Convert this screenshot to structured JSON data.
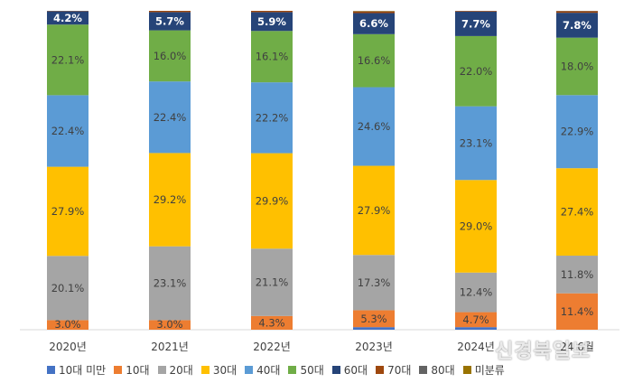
{
  "chart_data": {
    "type": "bar",
    "stacked": true,
    "percent_stacked": true,
    "categories": [
      "2020년",
      "2021년",
      "2022년",
      "2023년",
      "2024년",
      "24.6월"
    ],
    "series": [
      {
        "name": "10대 미만",
        "color": "#4472C4",
        "values": [
          0.0,
          0.0,
          0.0,
          0.8,
          0.8,
          0.0
        ],
        "labels": [
          "",
          "",
          "",
          "",
          "",
          ""
        ]
      },
      {
        "name": "10대",
        "color": "#ED7D31",
        "values": [
          3.0,
          3.0,
          4.3,
          5.3,
          4.7,
          11.4
        ],
        "labels": [
          "3.0%",
          "3.0%",
          "4.3%",
          "5.3%",
          "4.7%",
          "11.4%"
        ]
      },
      {
        "name": "20대",
        "color": "#A5A5A5",
        "values": [
          20.1,
          23.1,
          21.1,
          17.3,
          12.4,
          11.8
        ],
        "labels": [
          "20.1%",
          "23.1%",
          "21.1%",
          "17.3%",
          "12.4%",
          "11.8%"
        ]
      },
      {
        "name": "30대",
        "color": "#FFC000",
        "values": [
          27.9,
          29.2,
          29.9,
          27.9,
          29.0,
          27.4
        ],
        "labels": [
          "27.9%",
          "29.2%",
          "29.9%",
          "27.9%",
          "29.0%",
          "27.4%"
        ]
      },
      {
        "name": "40대",
        "color": "#5B9BD5",
        "values": [
          22.4,
          22.4,
          22.2,
          24.6,
          23.1,
          22.9
        ],
        "labels": [
          "22.4%",
          "22.4%",
          "22.2%",
          "24.6%",
          "23.1%",
          "22.9%"
        ]
      },
      {
        "name": "50대",
        "color": "#70AD47",
        "values": [
          22.1,
          16.0,
          16.1,
          16.6,
          22.0,
          18.0
        ],
        "labels": [
          "22.1%",
          "16.0%",
          "16.1%",
          "16.6%",
          "22.0%",
          "18.0%"
        ]
      },
      {
        "name": "60대",
        "color": "#264478",
        "values": [
          4.2,
          5.7,
          5.9,
          6.6,
          7.7,
          7.8
        ],
        "labels": [
          "4.2%",
          "5.7%",
          "5.9%",
          "6.6%",
          "7.7%",
          "7.8%"
        ]
      },
      {
        "name": "70대",
        "color": "#9E480E",
        "values": [
          0.1,
          0.4,
          0.4,
          0.5,
          0.2,
          0.5
        ],
        "labels": [
          "",
          "",
          "",
          "",
          "",
          ""
        ]
      },
      {
        "name": "80대",
        "color": "#636363",
        "values": [
          0.0,
          0.0,
          0.0,
          0.1,
          0.0,
          0.1
        ],
        "labels": [
          "",
          "",
          "",
          "",
          "",
          ""
        ]
      },
      {
        "name": "미분류",
        "color": "#997300",
        "values": [
          0.0,
          0.0,
          0.0,
          0.1,
          0.0,
          0.0
        ],
        "labels": [
          "",
          "",
          "",
          "",
          "",
          ""
        ]
      }
    ],
    "ylim": [
      0,
      100
    ],
    "legend_position": "bottom",
    "grid": false
  },
  "watermark": "신경북일보"
}
